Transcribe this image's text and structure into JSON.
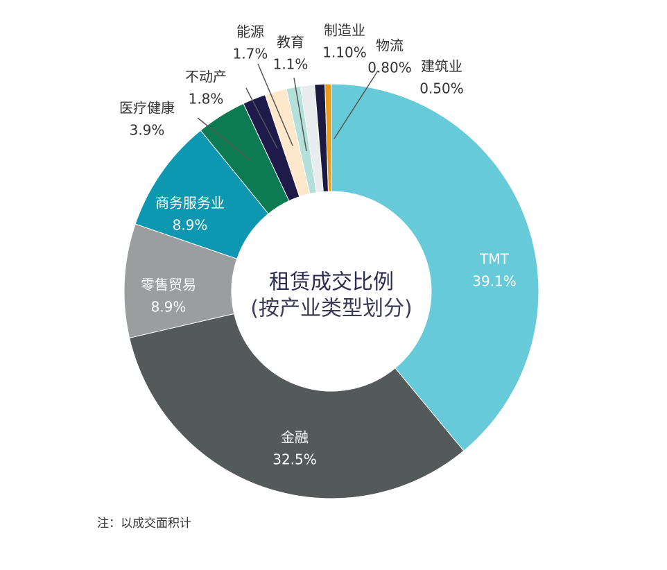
{
  "chart_data": {
    "type": "donut",
    "title": "租赁成交比例",
    "subtitle": "(按产业类型划分)",
    "note": "注：以成交面积计",
    "categories": [
      "TMT",
      "金融",
      "零售贸易",
      "商务服务业",
      "医疗健康",
      "不动产",
      "能源",
      "教育",
      "制造业",
      "物流",
      "建筑业"
    ],
    "values": [
      39.1,
      32.5,
      8.9,
      8.9,
      3.9,
      1.8,
      1.7,
      1.1,
      1.1,
      0.8,
      0.5
    ],
    "value_labels": [
      "39.1%",
      "32.5%",
      "8.9%",
      "8.9%",
      "3.9%",
      "1.8%",
      "1.7%",
      "1.1%",
      "1.10%",
      "0.80%",
      "0.50%"
    ],
    "colors": [
      "#67cad9",
      "#545a59",
      "#9a9e9f",
      "#0e97b0",
      "#0c7a52",
      "#1e1a4a",
      "#fde8cc",
      "#b4e0da",
      "#e8ecef",
      "#1c1a40",
      "#e89a1a"
    ]
  }
}
